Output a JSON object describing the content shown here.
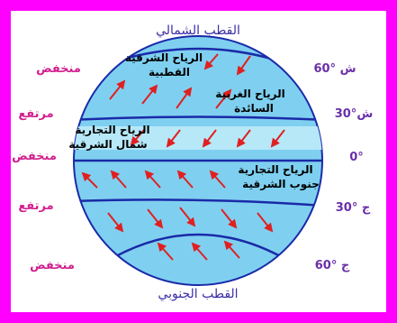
{
  "labels": {
    "north_pole": "القطب الشمالي",
    "south_pole": "القطب الجنوبي",
    "pressure": [
      "منخفض",
      "مرتفع",
      "منخفض",
      "مرتفع",
      "منخفض"
    ],
    "latitudes": [
      "60° ش",
      "30°ش",
      "0°",
      "30° ج",
      "60° ج"
    ]
  },
  "winds": {
    "polar_easterlies_line1": "الرياح الشرقية",
    "polar_easterlies_line2": "القطبية",
    "westerlies_line1": "الرياح الغربية",
    "westerlies_line2": "السائدة",
    "ne_trades_line1": "الرياح التجارية",
    "ne_trades_line2": "شمال الشرقية",
    "se_trades_line1": "الرياح التجارية",
    "se_trades_line2": "جنوب الشرقية"
  },
  "colors": {
    "frame": "#ff00ff",
    "globe_fill": "#7fd0f0",
    "globe_band": "#b6e8f8",
    "lat_lines": "#1a2aa8",
    "arrows": "#e02020",
    "pressure_text": "#d11f8e",
    "pole_text": "#3b2fa6"
  }
}
